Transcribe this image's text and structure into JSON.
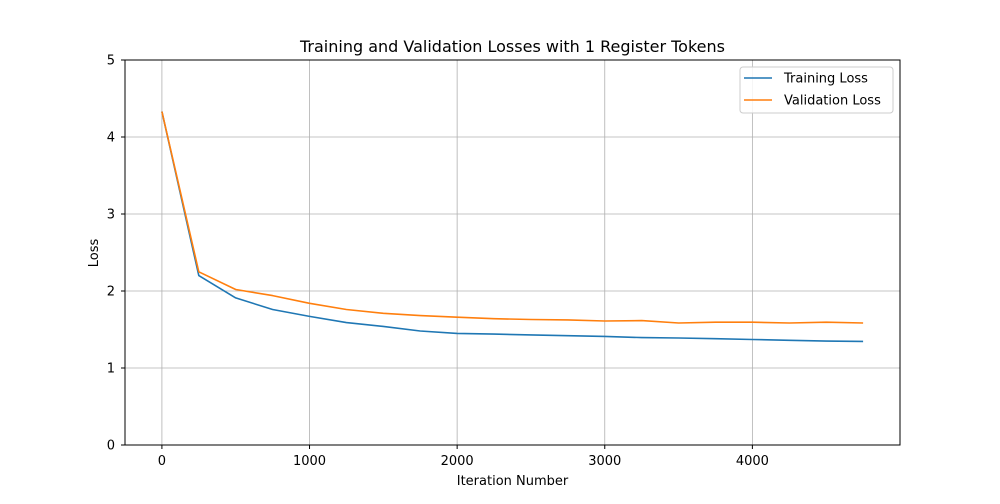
{
  "chart_data": {
    "type": "line",
    "title": "Training and Validation Losses with 1 Register Tokens",
    "xlabel": "Iteration Number",
    "ylabel": "Loss",
    "xlim": [
      -250,
      5000
    ],
    "ylim": [
      0,
      5
    ],
    "xticks": [
      0,
      1000,
      2000,
      3000,
      4000
    ],
    "yticks": [
      0,
      1,
      2,
      3,
      4,
      5
    ],
    "grid": true,
    "legend_position": "top-right",
    "x": [
      0,
      250,
      500,
      750,
      1000,
      1250,
      1500,
      1750,
      2000,
      2250,
      2500,
      2750,
      3000,
      3250,
      3500,
      3750,
      4000,
      4250,
      4500,
      4750
    ],
    "series": [
      {
        "name": "Training Loss",
        "color": "#1f77b4",
        "values": [
          4.33,
          2.2,
          1.91,
          1.76,
          1.67,
          1.59,
          1.54,
          1.48,
          1.45,
          1.44,
          1.43,
          1.42,
          1.41,
          1.395,
          1.39,
          1.38,
          1.37,
          1.36,
          1.35,
          1.345
        ]
      },
      {
        "name": "Validation Loss",
        "color": "#ff7f0e",
        "values": [
          4.33,
          2.25,
          2.02,
          1.94,
          1.84,
          1.76,
          1.71,
          1.68,
          1.66,
          1.64,
          1.63,
          1.625,
          1.61,
          1.615,
          1.585,
          1.595,
          1.595,
          1.585,
          1.595,
          1.585
        ]
      }
    ]
  }
}
